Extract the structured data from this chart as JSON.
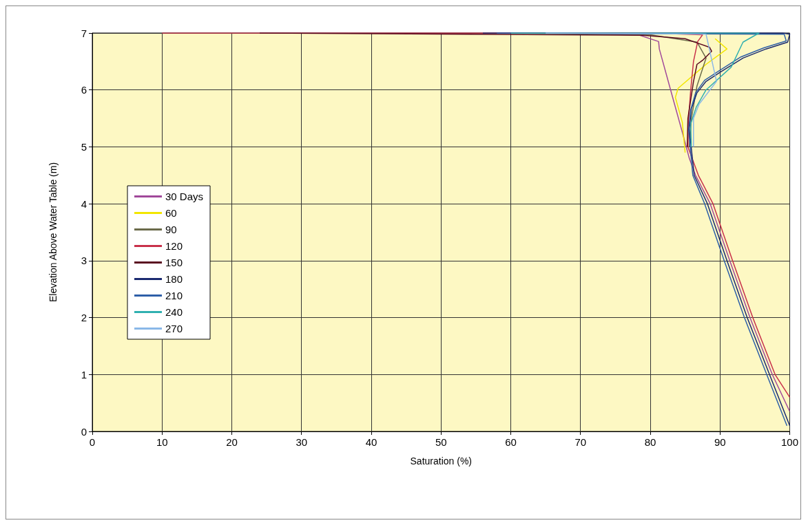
{
  "chart_data": {
    "type": "line",
    "xlabel": "Saturation (%)",
    "ylabel": "Elevation Above Water Table (m)",
    "xlim": [
      0,
      100
    ],
    "xticks": [
      0,
      10,
      20,
      30,
      40,
      50,
      60,
      70,
      80,
      90,
      100
    ],
    "ylim": [
      0,
      7
    ],
    "yticks": [
      0,
      1,
      2,
      3,
      4,
      5,
      6,
      7
    ],
    "grid": true,
    "legend": "left",
    "marker": "none",
    "line_style": "solid",
    "series": [
      {
        "name": "30 Days",
        "color": "#a0489a",
        "x": [
          70,
          78.5,
          81.2,
          81.3,
          83.3,
          84.5,
          85.6,
          86.5,
          88.6,
          91.4,
          94.3,
          97.5,
          100
        ],
        "values": [
          7,
          6.96,
          6.85,
          6.72,
          5.83,
          5.3,
          4.8,
          4.5,
          4,
          3,
          2,
          1,
          0.35
        ]
      },
      {
        "name": "60",
        "color": "#f2e600",
        "x": [
          89.3,
          91,
          88,
          84,
          83.6,
          84.6,
          85
        ],
        "values": [
          6.9,
          6.72,
          6.45,
          6.03,
          5.87,
          5.43,
          4.9
        ]
      },
      {
        "name": "90",
        "color": "#6b6b4a",
        "x": [
          60,
          80,
          86.7,
          88,
          86.7,
          85.9,
          85.6
        ],
        "values": [
          7,
          6.97,
          6.84,
          6.56,
          6.07,
          5.5,
          5
        ]
      },
      {
        "name": "120",
        "color": "#c8304a",
        "x": [
          10,
          80,
          87.5,
          86.8,
          86.2,
          85.8,
          85.5,
          85.4,
          86.9,
          89,
          91.8,
          94.7,
          97.9,
          100
        ],
        "values": [
          7,
          7,
          6.97,
          6.85,
          6.5,
          6,
          5.5,
          5,
          4.5,
          4,
          3,
          2,
          1,
          0.6
        ]
      },
      {
        "name": "150",
        "color": "#5a0a20",
        "x": [
          24,
          79,
          85,
          88.5,
          88.8,
          87.5,
          86.7,
          86.2,
          85.4,
          85.3
        ],
        "values": [
          7,
          6.96,
          6.9,
          6.75,
          6.68,
          6.52,
          6.45,
          6.15,
          5.5,
          5
        ]
      },
      {
        "name": "180",
        "color": "#1a2a70",
        "x": [
          56,
          99,
          100,
          99.7,
          96.6,
          93.3,
          90,
          88,
          86.7,
          85.9,
          85.6,
          86.3,
          88.2,
          91,
          93.9,
          97.1,
          100
        ],
        "values": [
          7,
          7,
          6.98,
          6.84,
          6.72,
          6.56,
          6.31,
          6.15,
          5.95,
          5.67,
          5.31,
          4.5,
          4,
          3,
          2,
          1,
          0.1
        ]
      },
      {
        "name": "210",
        "color": "#2e5fa8",
        "x": [
          58,
          99.2,
          99.5,
          96.3,
          93,
          89.8,
          87.8,
          86.5,
          85.8,
          85.5,
          86.1,
          87.8,
          90.6,
          93.5,
          96.7,
          99.6
        ],
        "values": [
          7,
          6.98,
          6.86,
          6.74,
          6.58,
          6.33,
          6.17,
          5.95,
          5.65,
          5.3,
          4.5,
          4,
          3,
          2,
          1,
          0.1
        ]
      },
      {
        "name": "240",
        "color": "#30b0b0",
        "x": [
          60,
          95.6,
          93.3,
          91.6,
          88,
          86.6,
          85.8,
          85.9
        ],
        "values": [
          7,
          7,
          6.84,
          6.4,
          6,
          5.7,
          5.4,
          5
        ]
      },
      {
        "name": "270",
        "color": "#8ab8e8",
        "x": [
          65,
          88,
          89.5,
          87,
          86.2,
          86.2
        ],
        "values": [
          7,
          6.98,
          6.15,
          5.75,
          5.5,
          5
        ]
      }
    ]
  }
}
